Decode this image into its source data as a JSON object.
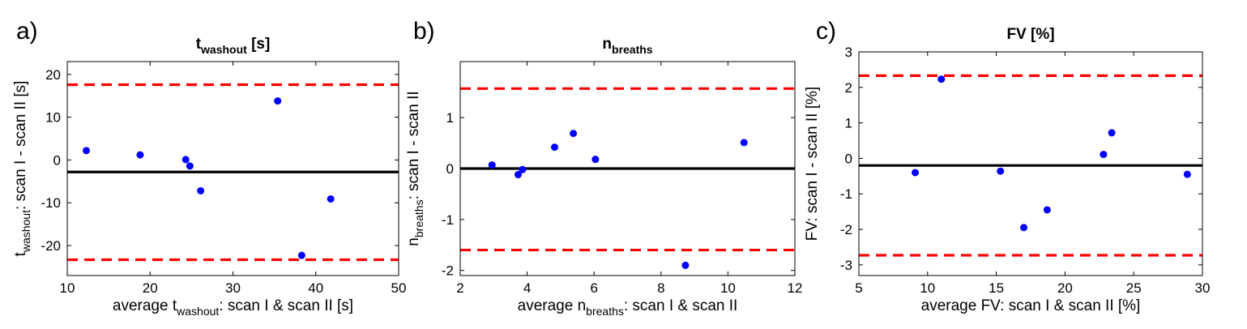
{
  "chart_data": [
    {
      "type": "scatter",
      "panel_label": "a)",
      "title": {
        "main": "t",
        "sub": "washout",
        "rest": " [s]"
      },
      "xlabel": {
        "pre": "average t",
        "sub": "washout",
        "post": ": scan I & scan II [s]"
      },
      "ylabel": {
        "pre": "t",
        "sub": "washout",
        "post": ": scan I - scan II [s]"
      },
      "xlim": [
        10,
        50
      ],
      "ylim": [
        -27,
        23
      ],
      "xticks": [
        "10",
        "20",
        "30",
        "40",
        "50"
      ],
      "yticks": [
        "-20",
        "-10",
        "0",
        "10",
        "20"
      ],
      "xtick_values": [
        10,
        20,
        30,
        40,
        50
      ],
      "ytick_values": [
        -20,
        -10,
        0,
        10,
        20
      ],
      "mean_line": -2.8,
      "limits_of_agreement": [
        17.6,
        -23.3
      ],
      "grid": false,
      "colors": {
        "points": "#0000ff",
        "mean": "#000000",
        "limits": "#ff0000"
      },
      "points": [
        {
          "x": 12.3,
          "y": 2.2
        },
        {
          "x": 18.8,
          "y": 1.2
        },
        {
          "x": 24.3,
          "y": 0.1
        },
        {
          "x": 24.8,
          "y": -1.4
        },
        {
          "x": 26.1,
          "y": -7.2
        },
        {
          "x": 35.4,
          "y": 13.8
        },
        {
          "x": 38.3,
          "y": -22.3
        },
        {
          "x": 41.8,
          "y": -9.1
        }
      ]
    },
    {
      "type": "scatter",
      "panel_label": "b)",
      "title": {
        "main": "n",
        "sub": "breaths",
        "rest": ""
      },
      "xlabel": {
        "pre": "average n",
        "sub": "breaths",
        "post": ": scan I & scan II"
      },
      "ylabel": {
        "pre": "n",
        "sub": "breaths",
        "post": ": scan I - scan II"
      },
      "xlim": [
        2,
        12
      ],
      "ylim": [
        -2.1,
        2.1
      ],
      "xticks": [
        "2",
        "4",
        "6",
        "8",
        "10",
        "12"
      ],
      "yticks": [
        "-2",
        "-1",
        "0",
        "1"
      ],
      "xtick_values": [
        2,
        4,
        6,
        8,
        10,
        12
      ],
      "ytick_values": [
        -2,
        -1,
        0,
        1
      ],
      "mean_line": 0,
      "limits_of_agreement": [
        1.57,
        -1.6
      ],
      "grid": false,
      "colors": {
        "points": "#0000ff",
        "mean": "#000000",
        "limits": "#ff0000"
      },
      "points": [
        {
          "x": 2.95,
          "y": 0.07
        },
        {
          "x": 3.73,
          "y": -0.12
        },
        {
          "x": 3.86,
          "y": -0.02
        },
        {
          "x": 4.82,
          "y": 0.42
        },
        {
          "x": 5.38,
          "y": 0.69
        },
        {
          "x": 6.04,
          "y": 0.18
        },
        {
          "x": 8.73,
          "y": -1.9
        },
        {
          "x": 10.48,
          "y": 0.51
        }
      ]
    },
    {
      "type": "scatter",
      "panel_label": "c)",
      "title": {
        "main": "FV [%]",
        "sub": "",
        "rest": ""
      },
      "xlabel": {
        "pre": "average FV: scan I & scan II [%]",
        "sub": "",
        "post": ""
      },
      "ylabel": {
        "pre": "FV: scan I - scan II [%]",
        "sub": "",
        "post": ""
      },
      "xlim": [
        5,
        30
      ],
      "ylim": [
        -3.3,
        3
      ],
      "xticks": [
        "5",
        "10",
        "15",
        "20",
        "25",
        "30"
      ],
      "yticks": [
        "-3",
        "-2",
        "-1",
        "0",
        "1",
        "2",
        "3"
      ],
      "xtick_values": [
        5,
        10,
        15,
        20,
        25,
        30
      ],
      "ytick_values": [
        -3,
        -2,
        -1,
        0,
        1,
        2,
        3
      ],
      "mean_line": -0.2,
      "limits_of_agreement": [
        2.33,
        -2.73
      ],
      "grid": false,
      "colors": {
        "points": "#0000ff",
        "mean": "#000000",
        "limits": "#ff0000"
      },
      "points": [
        {
          "x": 9.1,
          "y": -0.4
        },
        {
          "x": 11.0,
          "y": 2.23
        },
        {
          "x": 15.3,
          "y": -0.36
        },
        {
          "x": 17.0,
          "y": -1.95
        },
        {
          "x": 18.7,
          "y": -1.45
        },
        {
          "x": 22.8,
          "y": 0.11
        },
        {
          "x": 23.4,
          "y": 0.72
        },
        {
          "x": 28.9,
          "y": -0.45
        }
      ]
    }
  ]
}
